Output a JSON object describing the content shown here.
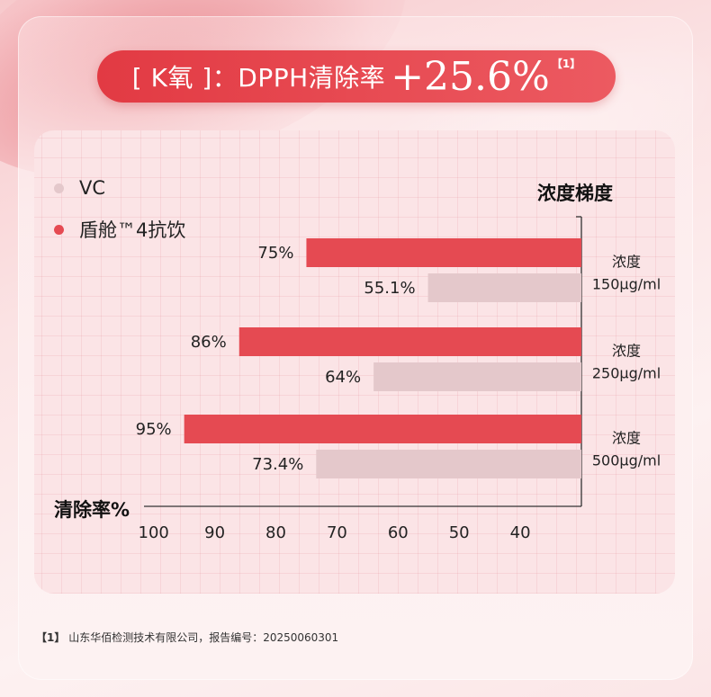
{
  "title": {
    "main": "[ K氧 ]：DPPH清除率",
    "big": "+25.6%",
    "sup": "【1】"
  },
  "legend": {
    "vc": "VC",
    "product": "盾舱™4抗饮"
  },
  "heading_concentration": "浓度梯度",
  "heading_rate": "清除率%",
  "colors": {
    "product": "#e54a52",
    "vc": "#e4c8cb",
    "accent": "#e23a43"
  },
  "chart_data": {
    "type": "bar",
    "orientation": "horizontal",
    "x_axis_reversed": true,
    "ylabel": "浓度梯度",
    "xlabel": "清除率%",
    "categories": [
      {
        "line1": "浓度",
        "line2": "150μg/ml"
      },
      {
        "line1": "浓度",
        "line2": "250μg/ml"
      },
      {
        "line1": "浓度",
        "line2": "500μg/ml"
      }
    ],
    "series": [
      {
        "name": "盾舱™4抗饮",
        "values": [
          75,
          86,
          95
        ],
        "labels": [
          "75%",
          "86%",
          "95%"
        ]
      },
      {
        "name": "VC",
        "values": [
          55.1,
          64,
          73.4
        ],
        "labels": [
          "55.1%",
          "64%",
          "73.4%"
        ]
      }
    ],
    "x_ticks": [
      100,
      90,
      80,
      70,
      60,
      50,
      40
    ],
    "xlim": [
      30,
      100
    ],
    "grid": true
  },
  "footnote": {
    "mark": "【1】",
    "text": "山东华佰检测技术有限公司，报告编号：20250060301"
  }
}
